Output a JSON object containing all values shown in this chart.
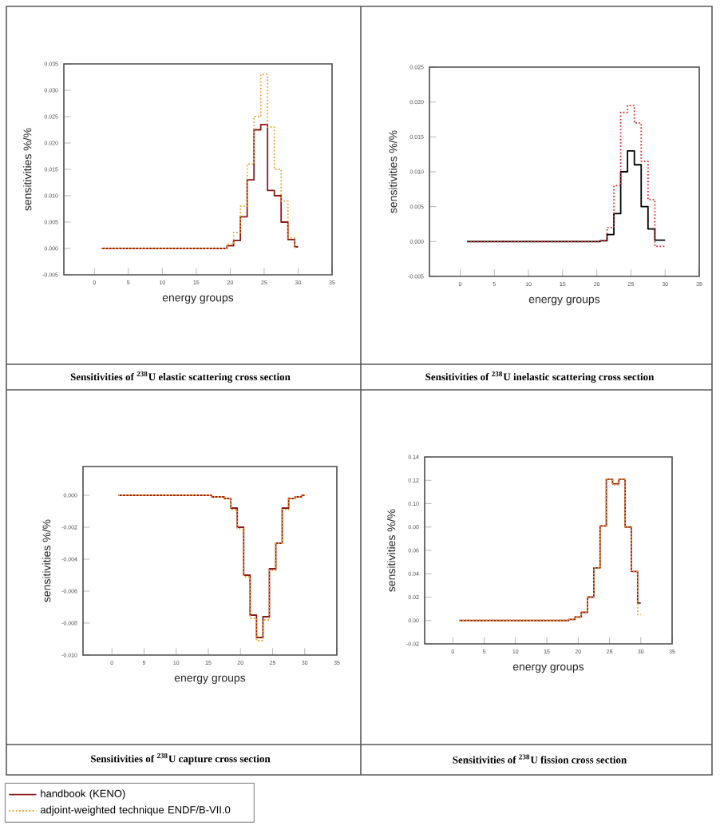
{
  "chart_data": [
    {
      "type": "step",
      "title": "Sensitivities of $^{238}$U elastic scattering cross section",
      "xlabel": "energy groups",
      "ylabel": "sensitivities %/%",
      "xlim": [
        -4.5,
        35
      ],
      "xticks": [
        0,
        5,
        10,
        15,
        20,
        25,
        30,
        35
      ],
      "ylim": [
        -0.005,
        0.035
      ],
      "yticks": [
        {
          "value": -0.005,
          "label": "-0.005"
        },
        {
          "value": 0,
          "label": "0.000"
        },
        {
          "value": 0.005,
          "label": "0.005"
        },
        {
          "value": 0.01,
          "label": "0.010"
        },
        {
          "value": 0.015,
          "label": "0.015"
        },
        {
          "value": 0.02,
          "label": "0.020"
        },
        {
          "value": 0.025,
          "label": "0.025"
        },
        {
          "value": 0.03,
          "label": "0.030"
        },
        {
          "value": 0.035,
          "label": "0.035"
        }
      ],
      "legend": "bottom",
      "x": [
        1,
        2,
        3,
        4,
        5,
        6,
        7,
        8,
        9,
        10,
        11,
        12,
        13,
        14,
        15,
        16,
        17,
        18,
        19,
        20,
        21,
        22,
        23,
        24,
        25,
        26,
        27,
        28,
        29,
        30
      ],
      "series": [
        {
          "name": "handbook (KENO)",
          "color": "#8b1a1a",
          "line_style": "solid",
          "values": [
            0,
            0,
            0,
            0,
            0,
            0,
            0,
            0,
            0,
            0,
            0,
            0,
            0,
            0,
            0,
            0,
            0,
            0,
            0,
            0.0005,
            0.0015,
            0.006,
            0.013,
            0.0225,
            0.0235,
            0.011,
            0.01,
            0.005,
            0.0017,
            0.0003
          ]
        },
        {
          "name": "adjoint-weighted technique ENDF/B-VII.0",
          "color": "#f0a030",
          "line_style": "dotted",
          "values": [
            0,
            0,
            0,
            0,
            0,
            0,
            0,
            0,
            0,
            0,
            0,
            0,
            0,
            0,
            0,
            0,
            0,
            0,
            0,
            0.0008,
            0.003,
            0.008,
            0.016,
            0.025,
            0.033,
            0.023,
            0.015,
            0.009,
            0.002,
            0.0002
          ]
        }
      ]
    },
    {
      "type": "step",
      "title": "Sensitivities of $^{238}$U inelastic scattering cross section",
      "xlabel": "energy groups",
      "ylabel": "sensitivities %/%",
      "xlim": [
        -4.5,
        35
      ],
      "xticks": [
        0,
        5,
        10,
        15,
        20,
        25,
        30,
        35
      ],
      "ylim": [
        -0.005,
        0.025
      ],
      "yticks": [
        {
          "value": -0.005,
          "label": "-0.005"
        },
        {
          "value": 0,
          "label": "0.000"
        },
        {
          "value": 0.005,
          "label": "0.005"
        },
        {
          "value": 0.01,
          "label": "0.010"
        },
        {
          "value": 0.015,
          "label": "0.015"
        },
        {
          "value": 0.02,
          "label": "0.020"
        },
        {
          "value": 0.025,
          "label": "0.025"
        }
      ],
      "x": [
        1,
        2,
        3,
        4,
        5,
        6,
        7,
        8,
        9,
        10,
        11,
        12,
        13,
        14,
        15,
        16,
        17,
        18,
        19,
        20,
        21,
        22,
        23,
        24,
        25,
        26,
        27,
        28,
        29,
        30
      ],
      "series": [
        {
          "color": "#000000",
          "line_style": "solid",
          "values": [
            0,
            0,
            0,
            0,
            0,
            0,
            0,
            0,
            0,
            0,
            0,
            0,
            0,
            0,
            0,
            0,
            0,
            0,
            0,
            0,
            0.0001,
            0.001,
            0.004,
            0.01,
            0.013,
            0.011,
            0.005,
            0.0018,
            0.0002,
            0.0002
          ]
        },
        {
          "color": "#e03030",
          "line_style": "dotted",
          "values": [
            0,
            0,
            0,
            0,
            0,
            0,
            0,
            0,
            0,
            0,
            0,
            0,
            0,
            0,
            0,
            0,
            0,
            0,
            0,
            0,
            0.0001,
            0.002,
            0.008,
            0.0185,
            0.0195,
            0.017,
            0.0115,
            0.006,
            -0.0007,
            -0.0007
          ]
        }
      ]
    },
    {
      "type": "step",
      "title": "Sensitivities of $^{238}$U capture cross section",
      "xlabel": "energy groups",
      "ylabel": "sensitivities %/%",
      "xlim": [
        -4.5,
        35
      ],
      "xticks": [
        0,
        5,
        10,
        15,
        20,
        25,
        30,
        35
      ],
      "ylim": [
        -0.01,
        0.0018
      ],
      "yticks": [
        {
          "value": -0.01,
          "label": "-0.010"
        },
        {
          "value": -0.008,
          "label": "-0.008"
        },
        {
          "value": -0.006,
          "label": "-0.006"
        },
        {
          "value": -0.004,
          "label": "-0.004"
        },
        {
          "value": -0.002,
          "label": "-0.002"
        },
        {
          "value": 0,
          "label": "0.000"
        }
      ],
      "x": [
        1,
        2,
        3,
        4,
        5,
        6,
        7,
        8,
        9,
        10,
        11,
        12,
        13,
        14,
        15,
        16,
        17,
        18,
        19,
        20,
        21,
        22,
        23,
        24,
        25,
        26,
        27,
        28,
        29,
        30
      ],
      "series": [
        {
          "color": "#8b1a1a",
          "line_style": "solid",
          "values": [
            0,
            0,
            0,
            0,
            0,
            0,
            0,
            0,
            0,
            0,
            0,
            0,
            0,
            0,
            0,
            -0.0001,
            -0.0001,
            -0.0002,
            -0.0008,
            -0.002,
            -0.005,
            -0.0075,
            -0.0089,
            -0.0076,
            -0.0046,
            -0.003,
            -0.0008,
            -0.0002,
            -0.0001,
            0
          ]
        },
        {
          "color": "#f0a030",
          "line_style": "dotted",
          "values": [
            0,
            0,
            0,
            0,
            0,
            0,
            0,
            0,
            0,
            0,
            0,
            0,
            0,
            0,
            0,
            -0.0001,
            -0.0001,
            -0.0002,
            -0.0009,
            -0.0021,
            -0.0051,
            -0.0077,
            -0.0091,
            -0.0078,
            -0.0047,
            -0.003,
            -0.0009,
            -0.0002,
            -0.0001,
            0
          ]
        }
      ]
    },
    {
      "type": "step",
      "title": "Sensitivities of $^{238}$U fission cross section",
      "xlabel": "energy groups",
      "ylabel": "sensitivities %/%",
      "xlim": [
        -4.5,
        35
      ],
      "xticks": [
        0,
        5,
        10,
        15,
        20,
        25,
        30,
        35
      ],
      "ylim": [
        -0.02,
        0.14
      ],
      "yticks": [
        {
          "value": -0.02,
          "label": "-0.02"
        },
        {
          "value": 0,
          "label": "0.00"
        },
        {
          "value": 0.02,
          "label": "0.02"
        },
        {
          "value": 0.04,
          "label": "0.04"
        },
        {
          "value": 0.06,
          "label": "0.06"
        },
        {
          "value": 0.08,
          "label": "0.08"
        },
        {
          "value": 0.1,
          "label": "0.10"
        },
        {
          "value": 0.12,
          "label": "0.12"
        },
        {
          "value": 0.14,
          "label": "0.14"
        }
      ],
      "x": [
        1,
        2,
        3,
        4,
        5,
        6,
        7,
        8,
        9,
        10,
        11,
        12,
        13,
        14,
        15,
        16,
        17,
        18,
        19,
        20,
        21,
        22,
        23,
        24,
        25,
        26,
        27,
        28,
        29,
        30
      ],
      "series": [
        {
          "color": "#8b1a1a",
          "line_style": "solid",
          "values": [
            0,
            0,
            0,
            0,
            0,
            0,
            0,
            0,
            0,
            0,
            0,
            0,
            0,
            0,
            0,
            0,
            0,
            0,
            0.001,
            0.003,
            0.007,
            0.02,
            0.045,
            0.081,
            0.121,
            0.117,
            0.121,
            0.08,
            0.042,
            0.015
          ]
        },
        {
          "color": "#f0a030",
          "line_style": "dotted",
          "values": [
            0,
            0,
            0,
            0,
            0,
            0,
            0,
            0,
            0,
            0,
            0,
            0,
            0,
            0,
            0,
            0,
            0,
            0,
            0.001,
            0.003,
            0.007,
            0.02,
            0.045,
            0.081,
            0.121,
            0.116,
            0.121,
            0.08,
            0.042,
            0.005
          ]
        }
      ]
    }
  ]
}
